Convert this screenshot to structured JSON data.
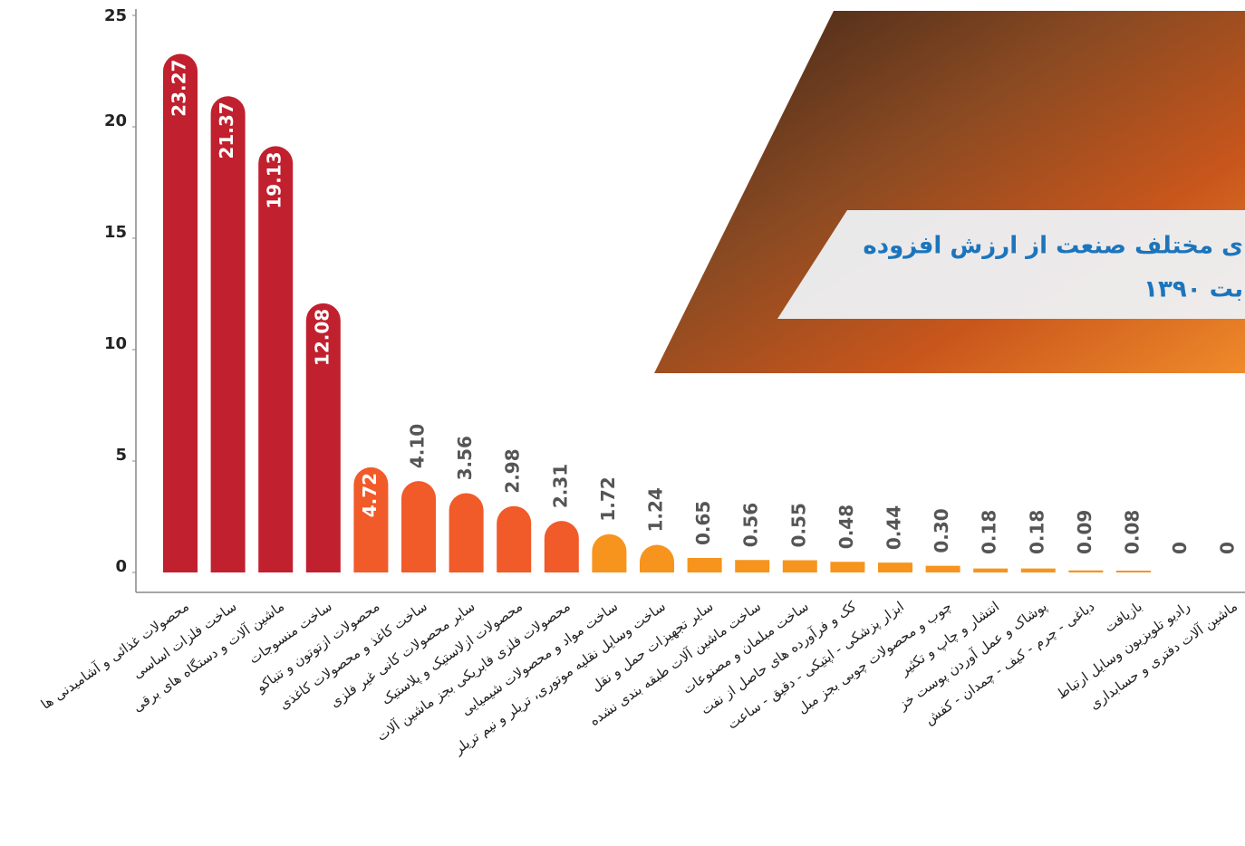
{
  "chart_data": {
    "type": "bar",
    "title_lines": [
      "ی مختلف صنعت از ارزش افزوده",
      "بت  ۱۳۹۰"
    ],
    "categories": [
      "محصولات غذائی و آشامیدنی ها",
      "ساخت فلزات اساسی",
      "ماشین آلات و دستگاه های برقی",
      "ساخت منسوجات",
      "محصولات ازتوتون و تنباکو",
      "ساخت کاغذ و محصولات کاغذی",
      "سایر محصولات کانی غیر فلزی",
      "محصولات ازلاستیک و پلاستیک",
      "محصولات فلزی فابریکی بجز ماشین آلات",
      "ساخت مواد و محصولات شیمیایی",
      "ساخت وسایل نقلیه موتوری، تریلر و نیم تریلر",
      "سایر تجهیزات حمل و نقل",
      "ساخت ماشین آلات طبقه بندی نشده",
      "ساخت مبلمان و مصنوعات",
      "کک و فرآورده های حاصل از نفت",
      "ابزار پزشکی - اپتیکی - دقیق - ساعت",
      "چوب و محصولات چوبی بجز مبل",
      "انتشار و چاپ و تکثیر",
      "پوشاک و عمل آوردن پوست خز",
      "دباغی - چرم - کیف - چمدان - کفش",
      "بازیافت",
      "رادیو تلویزیون وسایل ارتباط",
      "ماشین آلات دفتری و حسابداری"
    ],
    "values": [
      23.27,
      21.37,
      19.13,
      12.08,
      4.72,
      4.1,
      3.56,
      2.98,
      2.31,
      1.72,
      1.24,
      0.65,
      0.56,
      0.55,
      0.48,
      0.44,
      0.3,
      0.18,
      0.18,
      0.09,
      0.08,
      0,
      0
    ],
    "value_labels": [
      "23.27",
      "21.37",
      "19.13",
      "12.08",
      "4.72",
      "4.10",
      "3.56",
      "2.98",
      "2.31",
      "1.72",
      "1.24",
      "0.65",
      "0.56",
      "0.55",
      "0.48",
      "0.44",
      "0.30",
      "0.18",
      "0.18",
      "0.09",
      "0.08",
      "0",
      "0"
    ],
    "colors": [
      "#c1202e",
      "#c1202e",
      "#c1202e",
      "#c1202e",
      "#f15a29",
      "#f15a29",
      "#f15a29",
      "#f15a29",
      "#f15a29",
      "#f7941d",
      "#f7941d",
      "#f7941d",
      "#f7941d",
      "#f7941d",
      "#f7941d",
      "#f7941d",
      "#f7941d",
      "#f7941d",
      "#f7941d",
      "#f7941d",
      "#f7941d",
      "#f7941d",
      "#f7941d"
    ],
    "ylim": [
      0,
      25
    ],
    "yticks": [
      0,
      5,
      10,
      15,
      20,
      25
    ]
  }
}
